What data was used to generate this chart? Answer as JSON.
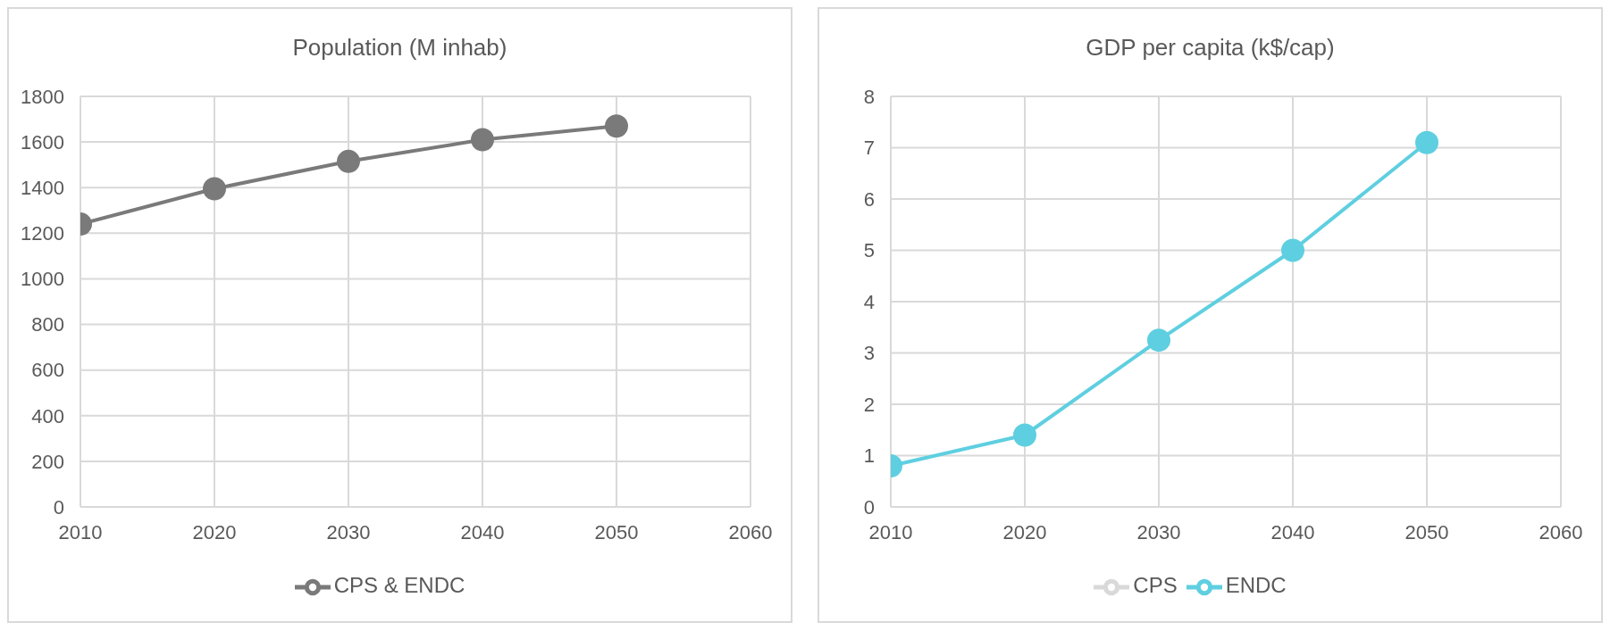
{
  "chart_data": [
    {
      "type": "line",
      "title": "Population (M inhab)",
      "x": [
        2010,
        2020,
        2030,
        2040,
        2050
      ],
      "series": [
        {
          "name": "CPS & ENDC",
          "color": "#7a7a7a",
          "values": [
            1240,
            1395,
            1515,
            1610,
            1670
          ]
        }
      ],
      "xlim": [
        2010,
        2060
      ],
      "xticks": [
        2010,
        2020,
        2030,
        2040,
        2050,
        2060
      ],
      "ylim": [
        0,
        1800
      ],
      "yticks": [
        0,
        200,
        400,
        600,
        800,
        1000,
        1200,
        1400,
        1600,
        1800
      ],
      "grid": true,
      "legend": "bottom",
      "marker": "circle",
      "line_style": "solid"
    },
    {
      "type": "line",
      "title": "GDP per capita (k$/cap)",
      "x": [
        2010,
        2020,
        2030,
        2040,
        2050
      ],
      "series": [
        {
          "name": "CPS",
          "color": "#d9d9d9",
          "values": [
            null,
            null,
            null,
            null,
            null
          ]
        },
        {
          "name": "ENDC",
          "color": "#5ecfe0",
          "values": [
            0.8,
            1.4,
            3.25,
            5.0,
            7.1
          ]
        }
      ],
      "xlim": [
        2010,
        2060
      ],
      "xticks": [
        2010,
        2020,
        2030,
        2040,
        2050,
        2060
      ],
      "ylim": [
        0,
        8
      ],
      "yticks": [
        0,
        1,
        2,
        3,
        4,
        5,
        6,
        7,
        8
      ],
      "grid": true,
      "legend": "bottom",
      "marker": "circle",
      "line_style": "solid"
    }
  ]
}
